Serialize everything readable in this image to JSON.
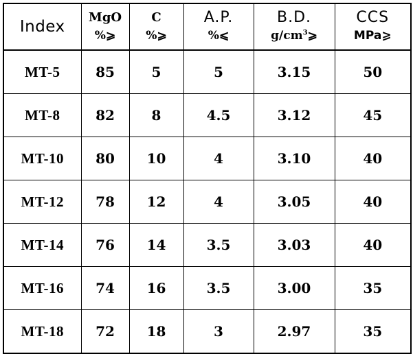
{
  "header": {
    "index": "Index",
    "mgo": {
      "name": "MgO",
      "unit": "%⩾"
    },
    "c": {
      "name": "C",
      "unit": "%⩾"
    },
    "ap": {
      "name": "A.P.",
      "unit": "%⩽"
    },
    "bd": {
      "name": "B.D.",
      "unit_base": "g/cm",
      "unit_exp": "3",
      "unit_sym": "⩾"
    },
    "ccs": {
      "name": "CCS",
      "unit": "MPa⩾"
    }
  },
  "rows": [
    {
      "grade": "MT-5",
      "mgo": "85",
      "c": "5",
      "ap": "5",
      "bd": "3.15",
      "ccs": "50"
    },
    {
      "grade": "MT-8",
      "mgo": "82",
      "c": "8",
      "ap": "4.5",
      "bd": "3.12",
      "ccs": "45"
    },
    {
      "grade": "MT-10",
      "mgo": "80",
      "c": "10",
      "ap": "4",
      "bd": "3.10",
      "ccs": "40"
    },
    {
      "grade": "MT-12",
      "mgo": "78",
      "c": "12",
      "ap": "4",
      "bd": "3.05",
      "ccs": "40"
    },
    {
      "grade": "MT-14",
      "mgo": "76",
      "c": "14",
      "ap": "3.5",
      "bd": "3.03",
      "ccs": "40"
    },
    {
      "grade": "MT-16",
      "mgo": "74",
      "c": "16",
      "ap": "3.5",
      "bd": "3.00",
      "ccs": "35"
    },
    {
      "grade": "MT-18",
      "mgo": "72",
      "c": "18",
      "ap": "3",
      "bd": "2.97",
      "ccs": "35"
    }
  ]
}
